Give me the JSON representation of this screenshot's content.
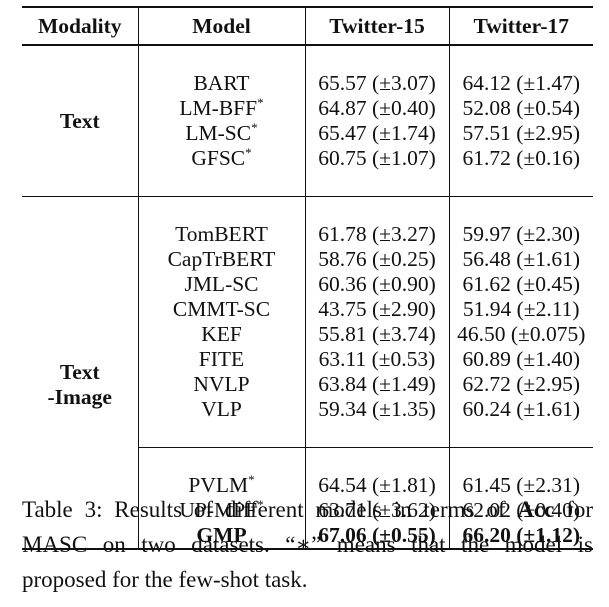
{
  "table": {
    "headers": [
      "Modality",
      "Model",
      "Twitter-15",
      "Twitter-17"
    ],
    "groups": [
      {
        "modality": "Text",
        "rows": [
          {
            "model": "BART",
            "sup": "",
            "t15": "65.57 (±3.07)",
            "t17": "64.12 (±1.47)"
          },
          {
            "model": "LM-BFF",
            "sup": "*",
            "t15": "64.87 (±0.40)",
            "t17": "52.08 (±0.54)"
          },
          {
            "model": "LM-SC",
            "sup": "*",
            "t15": "65.47 (±1.74)",
            "t17": "57.51 (±2.95)"
          },
          {
            "model": "GFSC",
            "sup": "*",
            "t15": "60.75 (±1.07)",
            "t17": "61.72 (±0.16)"
          }
        ]
      },
      {
        "modality_line1": "Text",
        "modality_line2": "-Image",
        "rows": [
          {
            "model": "TomBERT",
            "sup": "",
            "t15": "61.78 (±3.27)",
            "t17": "59.97 (±2.30)"
          },
          {
            "model": "CapTrBERT",
            "sup": "",
            "t15": "58.76 (±0.25)",
            "t17": "56.48 (±1.61)"
          },
          {
            "model": "JML-SC",
            "sup": "",
            "t15": "60.36 (±0.90)",
            "t17": "61.62 (±0.45)"
          },
          {
            "model": "CMMT-SC",
            "sup": "",
            "t15": "43.75 (±2.90)",
            "t17": "51.94 (±2.11)"
          },
          {
            "model": "KEF",
            "sup": "",
            "t15": "55.81 (±3.74)",
            "t17": "46.50 (±0.075)"
          },
          {
            "model": "FITE",
            "sup": "",
            "t15": "63.11 (±0.53)",
            "t17": "60.89 (±1.40)"
          },
          {
            "model": "NVLP",
            "sup": "",
            "t15": "63.84 (±1.49)",
            "t17": "62.72 (±2.95)"
          },
          {
            "model": "VLP",
            "sup": "",
            "t15": "59.34 (±1.35)",
            "t17": "60.24 (±1.61)"
          }
        ],
        "rows2": [
          {
            "model": "PVLM",
            "sup": "*",
            "t15": "64.54 (±1.81)",
            "t17": "61.45 (±2.31)"
          },
          {
            "model": "UP-MPF",
            "sup": "*",
            "t15": "63.71 (±3.62)",
            "t17": "62.02 (±0.40)"
          },
          {
            "model": "GMP",
            "sup": "",
            "t15": "67.06 (±0.55)",
            "t17": "66.20 (±1.12)"
          }
        ]
      }
    ]
  },
  "caption": {
    "label": "Table 3:",
    "text_before": " Results of different models in terms of ",
    "metric": "Acc",
    "text_after": " for MASC on two datasets. “∗” means that the model is proposed for the few-shot task."
  }
}
